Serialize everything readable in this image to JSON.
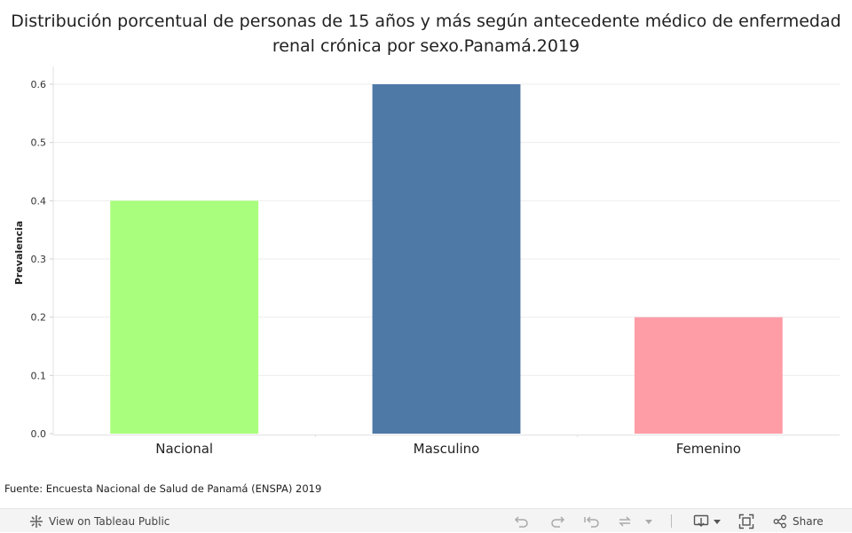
{
  "chart_data": {
    "type": "bar",
    "title": "Distribución porcentual de personas de 15 años y más según antecedente médico de enfermedad renal crónica por sexo.Panamá.2019",
    "ylabel": "Prevalencia",
    "xlabel": "",
    "categories": [
      "Nacional",
      "Masculino",
      "Femenino"
    ],
    "values": [
      0.4,
      0.6,
      0.2
    ],
    "colors": [
      "#a9ff7d",
      "#4e79a7",
      "#ff9da7"
    ],
    "ylim": [
      0,
      0.6
    ],
    "yticks": [
      "0.0",
      "0.1",
      "0.2",
      "0.3",
      "0.4",
      "0.5",
      "0.6"
    ],
    "grid": true,
    "legend": "none"
  },
  "source": "Fuente: Encuesta Nacional de Salud de Panamá (ENSPA) 2019",
  "toolbar": {
    "view_label": "View on Tableau Public",
    "share_label": "Share",
    "icons": [
      "tableau-icon",
      "undo-icon",
      "redo-icon",
      "revert-icon",
      "refresh-icon",
      "download-icon",
      "fullscreen-icon",
      "share-icon"
    ]
  }
}
